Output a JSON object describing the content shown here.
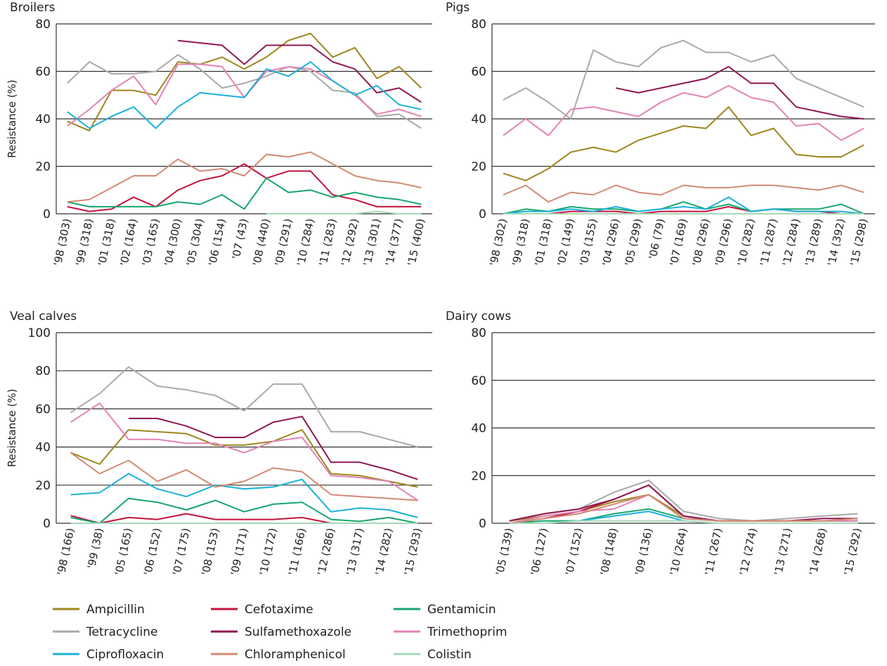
{
  "legend": [
    {
      "name": "Ampicillin",
      "color": "#9c861e"
    },
    {
      "name": "Cefotaxime",
      "color": "#c2133e"
    },
    {
      "name": "Gentamicin",
      "color": "#18a56e"
    },
    {
      "name": "Tetracycline",
      "color": "#a9a9a9"
    },
    {
      "name": "Sulfamethoxazole",
      "color": "#8e1850"
    },
    {
      "name": "Trimethoprim",
      "color": "#e383b4"
    },
    {
      "name": "Ciprofloxacin",
      "color": "#1cb1d9"
    },
    {
      "name": "Chloramphenicol",
      "color": "#d28a72"
    },
    {
      "name": "Colistin",
      "color": "#a6d9b9"
    }
  ],
  "chart_data": [
    {
      "type": "line",
      "title": "Broilers",
      "ylabel": "Resistance (%)",
      "categories": [
        "'98 (303)",
        "'99 (318)",
        "'01 (318)",
        "'02 (164)",
        "'03 (165)",
        "'04 (300)",
        "'05 (304)",
        "'06 (154)",
        "'07 (43)",
        "'08 (440)",
        "'09 (291)",
        "'10 (284)",
        "'11 (283)",
        "'12 (292)",
        "'13 (301)",
        "'14 (377)",
        "'15 (400)"
      ],
      "ylim": [
        0,
        80
      ],
      "yticks": [
        0,
        20,
        40,
        60,
        80
      ],
      "grid": true,
      "series": [
        {
          "values": [
            39,
            35,
            52,
            52,
            50,
            64,
            63,
            66,
            61,
            66,
            73,
            76,
            66,
            70,
            57,
            62,
            53
          ]
        },
        {
          "values": [
            3,
            1,
            2,
            7,
            3,
            10,
            14,
            16,
            21,
            15,
            18,
            18,
            8,
            6,
            3,
            3,
            3
          ]
        },
        {
          "values": [
            5,
            3,
            3,
            3,
            3,
            5,
            4,
            8,
            2,
            15,
            9,
            10,
            7,
            9,
            7,
            6,
            4
          ]
        },
        {
          "values": [
            55,
            64,
            59,
            59,
            60,
            67,
            61,
            53,
            55,
            58,
            62,
            60,
            52,
            51,
            41,
            42,
            36
          ]
        },
        {
          "values": [
            null,
            null,
            null,
            null,
            null,
            73,
            72,
            71,
            63,
            71,
            71,
            71,
            64,
            61,
            51,
            53,
            47
          ]
        },
        {
          "values": [
            37,
            44,
            52,
            58,
            46,
            63,
            63,
            62,
            49,
            60,
            62,
            61,
            56,
            50,
            42,
            44,
            41
          ]
        },
        {
          "values": [
            43,
            36,
            41,
            45,
            36,
            45,
            51,
            50,
            49,
            61,
            58,
            64,
            56,
            50,
            54,
            46,
            44
          ]
        },
        {
          "values": [
            5,
            6,
            11,
            16,
            16,
            23,
            18,
            19,
            16,
            25,
            24,
            26,
            21,
            16,
            14,
            13,
            11
          ]
        },
        {
          "values": [
            null,
            null,
            null,
            null,
            null,
            null,
            null,
            null,
            null,
            0,
            0,
            0,
            0,
            0,
            1,
            0,
            0
          ]
        }
      ]
    },
    {
      "type": "line",
      "title": "Pigs",
      "categories": [
        "'98 (302)",
        "'99 (318)",
        "'01 (318)",
        "'02 (149)",
        "'03 (155)",
        "'04 (296)",
        "'05 (299)",
        "'06 (79)",
        "'07 (169)",
        "'08 (296)",
        "'09 (296)",
        "'10 (282)",
        "'11 (287)",
        "'12 (284)",
        "'13 (289)",
        "'14 (392)",
        "'15 (298)"
      ],
      "ylim": [
        0,
        80
      ],
      "yticks": [
        0,
        20,
        40,
        60,
        80
      ],
      "grid": true,
      "series": [
        {
          "values": [
            17,
            14,
            19,
            26,
            28,
            26,
            31,
            34,
            37,
            36,
            45,
            33,
            36,
            25,
            24,
            24,
            29
          ]
        },
        {
          "values": [
            0,
            0,
            0,
            1,
            1,
            1,
            0,
            1,
            1,
            1,
            3,
            1,
            2,
            1,
            1,
            0,
            0
          ]
        },
        {
          "values": [
            0,
            2,
            1,
            3,
            2,
            2,
            1,
            2,
            5,
            2,
            4,
            1,
            2,
            2,
            2,
            4,
            0
          ]
        },
        {
          "values": [
            48,
            53,
            47,
            40,
            69,
            64,
            62,
            70,
            73,
            68,
            68,
            64,
            67,
            57,
            53,
            49,
            45
          ]
        },
        {
          "values": [
            null,
            null,
            null,
            null,
            null,
            53,
            51,
            53,
            55,
            57,
            62,
            55,
            55,
            45,
            43,
            41,
            40
          ]
        },
        {
          "values": [
            33,
            40,
            33,
            44,
            45,
            43,
            41,
            47,
            51,
            49,
            54,
            49,
            47,
            37,
            38,
            31,
            36
          ]
        },
        {
          "values": [
            0,
            1,
            1,
            2,
            1,
            3,
            1,
            2,
            3,
            2,
            7,
            1,
            2,
            1,
            1,
            1,
            0
          ]
        },
        {
          "values": [
            8,
            12,
            5,
            9,
            8,
            12,
            9,
            8,
            12,
            11,
            11,
            12,
            12,
            11,
            10,
            12,
            9
          ]
        },
        {
          "values": [
            0,
            0,
            0,
            0,
            0,
            0,
            0,
            0,
            0,
            0,
            0,
            0,
            0,
            0,
            0,
            0,
            0
          ]
        }
      ]
    },
    {
      "type": "line",
      "title": "Veal calves",
      "ylabel": "Resistance (%)",
      "categories": [
        "'98 (166)",
        "'99 (38)",
        "'05 (165)",
        "'06 (152)",
        "'07 (175)",
        "'08 (153)",
        "'09 (171)",
        "'10 (172)",
        "'11 (166)",
        "'12 (286)",
        "'13 (317)",
        "'14 (282)",
        "'15 (293)"
      ],
      "ylim": [
        0,
        100
      ],
      "yticks": [
        0,
        20,
        40,
        60,
        80,
        100
      ],
      "grid": true,
      "series": [
        {
          "values": [
            37,
            31,
            49,
            48,
            47,
            41,
            41,
            43,
            49,
            26,
            25,
            22,
            19
          ]
        },
        {
          "values": [
            4,
            0,
            3,
            2,
            5,
            2,
            2,
            2,
            3,
            0,
            0,
            0,
            0
          ]
        },
        {
          "values": [
            3,
            0,
            13,
            11,
            7,
            12,
            6,
            10,
            11,
            2,
            1,
            3,
            0
          ]
        },
        {
          "values": [
            58,
            68,
            82,
            72,
            70,
            67,
            59,
            73,
            73,
            48,
            48,
            44,
            40
          ]
        },
        {
          "values": [
            null,
            null,
            55,
            55,
            51,
            45,
            45,
            53,
            56,
            32,
            32,
            28,
            23
          ]
        },
        {
          "values": [
            53,
            63,
            44,
            44,
            42,
            42,
            37,
            43,
            45,
            25,
            24,
            22,
            12
          ]
        },
        {
          "values": [
            15,
            16,
            26,
            18,
            14,
            20,
            18,
            19,
            23,
            6,
            8,
            7,
            3
          ]
        },
        {
          "values": [
            37,
            26,
            33,
            22,
            28,
            19,
            22,
            29,
            27,
            15,
            14,
            13,
            12
          ]
        },
        {
          "values": [
            0,
            0,
            0,
            0,
            0,
            0,
            0,
            0,
            0,
            0,
            0,
            0,
            0
          ]
        }
      ]
    },
    {
      "type": "line",
      "title": "Dairy cows",
      "categories": [
        "'05 (139)",
        "'06 (127)",
        "'07 (152)",
        "'08 (148)",
        "'09 (136)",
        "'10 (264)",
        "'11 (267)",
        "'12 (274)",
        "'13 (271)",
        "'14 (268)",
        "'15 (292)"
      ],
      "ylim": [
        0,
        80
      ],
      "yticks": [
        0,
        20,
        40,
        60,
        80
      ],
      "grid": true,
      "series": [
        {
          "values": [
            1,
            3,
            5,
            9,
            12,
            3,
            1,
            1,
            1,
            1,
            1
          ]
        },
        {
          "values": [
            0,
            2,
            5,
            10,
            16,
            3,
            1,
            1,
            1,
            1,
            1
          ]
        },
        {
          "values": [
            0,
            1,
            1,
            4,
            6,
            2,
            1,
            1,
            1,
            1,
            1
          ]
        },
        {
          "values": [
            1,
            4,
            6,
            13,
            18,
            5,
            2,
            1,
            2,
            3,
            4
          ]
        },
        {
          "values": [
            1,
            4,
            6,
            10,
            16,
            3,
            1,
            1,
            1,
            2,
            2
          ]
        },
        {
          "values": [
            0,
            3,
            5,
            6,
            12,
            2,
            1,
            1,
            1,
            1,
            1
          ]
        },
        {
          "values": [
            0,
            0,
            1,
            3,
            5,
            1,
            0,
            0,
            0,
            0,
            0
          ]
        },
        {
          "values": [
            0,
            2,
            4,
            8,
            12,
            2,
            1,
            1,
            1,
            1,
            2
          ]
        },
        {
          "values": [
            0,
            0,
            1,
            1,
            1,
            1,
            0,
            0,
            0,
            0,
            0
          ]
        }
      ]
    }
  ]
}
